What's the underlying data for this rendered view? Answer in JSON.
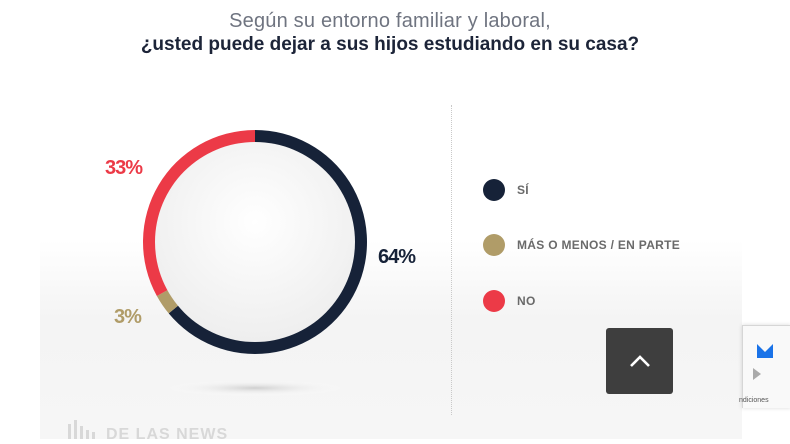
{
  "chart_data": {
    "type": "pie",
    "title": "¿usted puede dejar a sus hijos estudiando en su casa?",
    "subtitle": "Según su entorno familiar y laboral,",
    "series": [
      {
        "name": "SÍ",
        "value": 64,
        "label": "64%",
        "color": "#162238"
      },
      {
        "name": "MÁS O MENOS / EN PARTE",
        "value": 3,
        "label": "3%",
        "color": "#b09c68"
      },
      {
        "name": "NO",
        "value": 33,
        "label": "33%",
        "color": "#ec3a47"
      }
    ],
    "legend_position": "right"
  },
  "ui": {
    "scroll_top_icon": "chevron-up-icon",
    "recaptcha_text": "ndiciones",
    "footer_logo_text": "DE LAS NEWS"
  }
}
